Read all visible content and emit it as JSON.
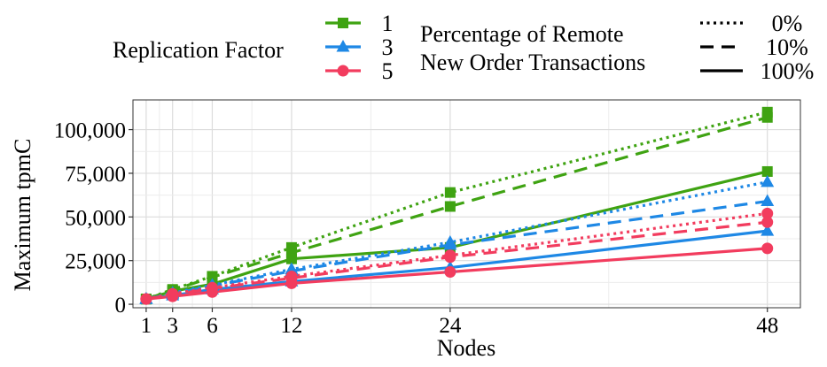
{
  "chart_data": {
    "type": "line",
    "title": "",
    "xlabel": "Nodes",
    "ylabel": "Maximum tpmC",
    "x": [
      1,
      3,
      6,
      12,
      24,
      48
    ],
    "xticks": [
      "1",
      "3",
      "6",
      "12",
      "24",
      "48"
    ],
    "xlim": [
      0,
      50.5
    ],
    "yticks": [
      0,
      25000,
      50000,
      75000,
      100000
    ],
    "ytick_labels": [
      "0",
      "25,000",
      "50,000",
      "75,000",
      "100,000"
    ],
    "ylim": [
      -2000,
      117000
    ],
    "grid": true,
    "legend": {
      "placement": "top",
      "color_title": "Replication Factor",
      "color_entries": [
        {
          "label": "1",
          "color": "#3fa312",
          "marker": "square"
        },
        {
          "label": "3",
          "color": "#1e88e5",
          "marker": "triangle"
        },
        {
          "label": "5",
          "color": "#f23c5e",
          "marker": "circle"
        }
      ],
      "linetype_title_lines": [
        "Percentage of Remote",
        "New Order Transactions"
      ],
      "linetype_entries": [
        {
          "label": "0%",
          "dash": "dotted"
        },
        {
          "label": "10%",
          "dash": "dashed"
        },
        {
          "label": "100%",
          "dash": "solid"
        }
      ]
    },
    "series": [
      {
        "replication": "1",
        "remote": "0%",
        "color": "#3fa312",
        "marker": "square",
        "dash": "dotted",
        "values": [
          3000,
          8500,
          16000,
          32500,
          64000,
          110000
        ]
      },
      {
        "replication": "1",
        "remote": "10%",
        "color": "#3fa312",
        "marker": "square",
        "dash": "dashed",
        "values": [
          3000,
          8000,
          15500,
          29500,
          56000,
          107000
        ]
      },
      {
        "replication": "1",
        "remote": "100%",
        "color": "#3fa312",
        "marker": "square",
        "dash": "solid",
        "values": [
          3000,
          7500,
          11500,
          26000,
          32500,
          76000
        ]
      },
      {
        "replication": "3",
        "remote": "0%",
        "color": "#1e88e5",
        "marker": "triangle",
        "dash": "dotted",
        "values": [
          3000,
          6500,
          11000,
          20000,
          35500,
          70000
        ]
      },
      {
        "replication": "3",
        "remote": "10%",
        "color": "#1e88e5",
        "marker": "triangle",
        "dash": "dashed",
        "values": [
          3000,
          6000,
          10500,
          19000,
          34000,
          59000
        ]
      },
      {
        "replication": "3",
        "remote": "100%",
        "color": "#1e88e5",
        "marker": "triangle",
        "dash": "solid",
        "values": [
          3000,
          5000,
          8500,
          13000,
          21000,
          42000
        ]
      },
      {
        "replication": "5",
        "remote": "0%",
        "color": "#f23c5e",
        "marker": "circle",
        "dash": "dotted",
        "values": [
          3000,
          6000,
          9500,
          16000,
          28000,
          52000
        ]
      },
      {
        "replication": "5",
        "remote": "10%",
        "color": "#f23c5e",
        "marker": "circle",
        "dash": "dashed",
        "values": [
          3000,
          5500,
          9000,
          15000,
          27000,
          47000
        ]
      },
      {
        "replication": "5",
        "remote": "100%",
        "color": "#f23c5e",
        "marker": "circle",
        "dash": "solid",
        "values": [
          3000,
          4500,
          7000,
          12000,
          18500,
          32000
        ]
      }
    ]
  }
}
